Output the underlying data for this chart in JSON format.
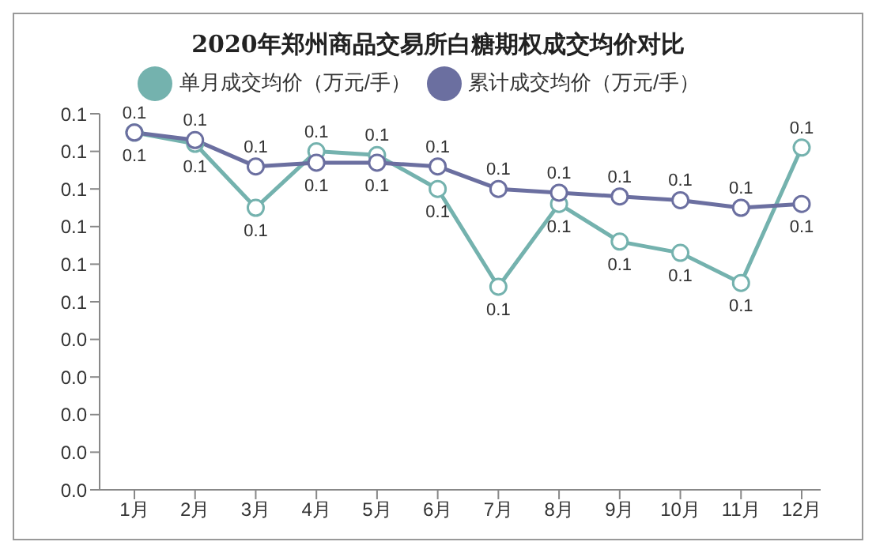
{
  "chart_data": {
    "type": "line",
    "title": "2020年郑州商品交易所白糖期权成交均价对比",
    "categories": [
      "1月",
      "2月",
      "3月",
      "4月",
      "5月",
      "6月",
      "7月",
      "8月",
      "9月",
      "10月",
      "11月",
      "12月"
    ],
    "series": [
      {
        "name": "单月成交均价（万元/手）",
        "color": "#74b2ae",
        "values": [
          0.095,
          0.092,
          0.075,
          0.09,
          0.089,
          0.08,
          0.054,
          0.076,
          0.066,
          0.063,
          0.055,
          0.091
        ],
        "value_labels": [
          "0.1",
          "0.1",
          "0.1",
          "0.1",
          "0.1",
          "0.1",
          "0.1",
          "0.1",
          "0.1",
          "0.1",
          "0.1",
          "0.1"
        ]
      },
      {
        "name": "累计成交均价（万元/手）",
        "color": "#6b6fa0",
        "values": [
          0.095,
          0.093,
          0.086,
          0.087,
          0.087,
          0.086,
          0.08,
          0.079,
          0.078,
          0.077,
          0.075,
          0.076
        ],
        "value_labels": [
          "0.1",
          "0.1",
          "0.1",
          "0.1",
          "0.1",
          "0.1",
          "0.1",
          "0.1",
          "0.1",
          "0.1",
          "0.1",
          "0.1"
        ]
      }
    ],
    "ylim": [
      0,
      0.1
    ],
    "yticks": [
      {
        "value": 0,
        "label": "0.0"
      },
      {
        "value": 0.01,
        "label": "0.0"
      },
      {
        "value": 0.02,
        "label": "0.0"
      },
      {
        "value": 0.03,
        "label": "0.0"
      },
      {
        "value": 0.04,
        "label": "0.0"
      },
      {
        "value": 0.05,
        "label": "0.1"
      },
      {
        "value": 0.06,
        "label": "0.1"
      },
      {
        "value": 0.07,
        "label": "0.1"
      },
      {
        "value": 0.08,
        "label": "0.1"
      },
      {
        "value": 0.09,
        "label": "0.1"
      },
      {
        "value": 0.1,
        "label": "0.1"
      }
    ],
    "grid": false,
    "legend": "top",
    "marker": "circle",
    "line_style": "solid"
  }
}
